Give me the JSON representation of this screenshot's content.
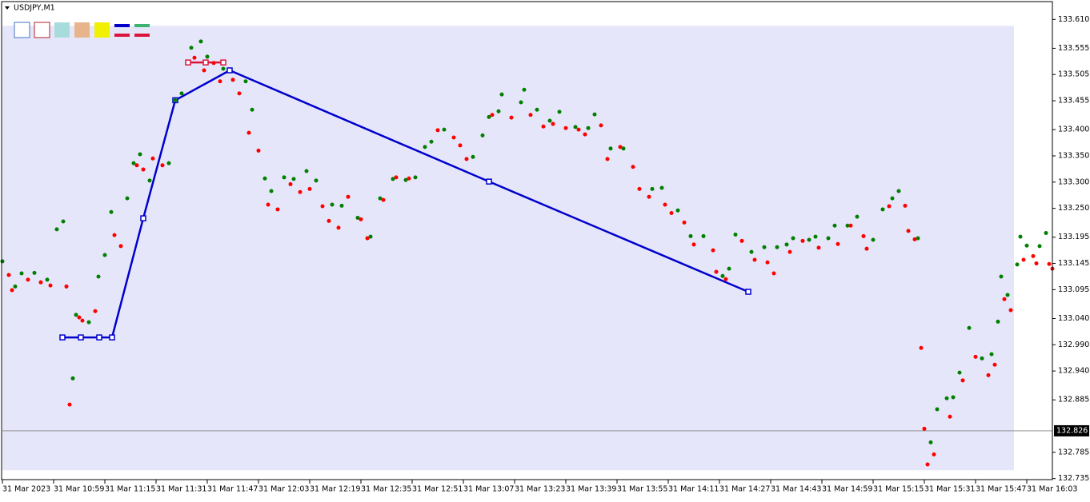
{
  "chart_data": {
    "type": "scatter",
    "title": "USDJPY,M1",
    "xlim": [
      0,
      328
    ],
    "ylim": [
      132.733,
      133.644
    ],
    "xticks": [
      {
        "value": 0,
        "label": "31 Mar 2023"
      },
      {
        "value": 16,
        "label": "31 Mar 10:59"
      },
      {
        "value": 32,
        "label": "31 Mar 11:15"
      },
      {
        "value": 48,
        "label": "31 Mar 11:31"
      },
      {
        "value": 64,
        "label": "31 Mar 11:47"
      },
      {
        "value": 80,
        "label": "31 Mar 12:03"
      },
      {
        "value": 96,
        "label": "31 Mar 12:19"
      },
      {
        "value": 112,
        "label": "31 Mar 12:35"
      },
      {
        "value": 128,
        "label": "31 Mar 12:51"
      },
      {
        "value": 144,
        "label": "31 Mar 13:07"
      },
      {
        "value": 160,
        "label": "31 Mar 13:23"
      },
      {
        "value": 176,
        "label": "31 Mar 13:39"
      },
      {
        "value": 192,
        "label": "31 Mar 13:55"
      },
      {
        "value": 208,
        "label": "31 Mar 14:11"
      },
      {
        "value": 224,
        "label": "31 Mar 14:27"
      },
      {
        "value": 240,
        "label": "31 Mar 14:43"
      },
      {
        "value": 256,
        "label": "31 Mar 14:59"
      },
      {
        "value": 272,
        "label": "31 Mar 15:15"
      },
      {
        "value": 288,
        "label": "31 Mar 15:31"
      },
      {
        "value": 304,
        "label": "31 Mar 15:47"
      },
      {
        "value": 320,
        "label": "31 Mar 16:03"
      }
    ],
    "yticks": [
      {
        "value": 133.61,
        "label": "133.610"
      },
      {
        "value": 133.555,
        "label": "133.555"
      },
      {
        "value": 133.505,
        "label": "133.505"
      },
      {
        "value": 133.455,
        "label": "133.455"
      },
      {
        "value": 133.4,
        "label": "133.400"
      },
      {
        "value": 133.35,
        "label": "133.350"
      },
      {
        "value": 133.3,
        "label": "133.300"
      },
      {
        "value": 133.25,
        "label": "133.250"
      },
      {
        "value": 133.195,
        "label": "133.195"
      },
      {
        "value": 133.145,
        "label": "133.145"
      },
      {
        "value": 133.095,
        "label": "133.095"
      },
      {
        "value": 133.04,
        "label": "133.040"
      },
      {
        "value": 132.99,
        "label": "132.990"
      },
      {
        "value": 132.94,
        "label": "132.940"
      },
      {
        "value": 132.885,
        "label": "132.885"
      },
      {
        "value": 132.785,
        "label": "132.785"
      },
      {
        "value": 132.735,
        "label": "132.735"
      }
    ],
    "current_price": 132.826,
    "zone": {
      "color": "#e6e6fa",
      "xlim": [
        0,
        316
      ],
      "ylim": [
        132.751,
        133.598
      ]
    },
    "series": [
      {
        "color": "#008000",
        "x": [
          0,
          4,
          6,
          10,
          14,
          17,
          19,
          22,
          23,
          27,
          30,
          32,
          34,
          39,
          41,
          43,
          46,
          52,
          54,
          56,
          59,
          62,
          64,
          69,
          76,
          78,
          82,
          84,
          88,
          91,
          95,
          98,
          103,
          106,
          111,
          115,
          118,
          122,
          126,
          129,
          132,
          134,
          138,
          147,
          150,
          152,
          155,
          156,
          162,
          163,
          167,
          171,
          174,
          179,
          183,
          185,
          190,
          194,
          203,
          206,
          211,
          215,
          219,
          225,
          227,
          229,
          234,
          238,
          242,
          245,
          247,
          252,
          254,
          258,
          260,
          264,
          267,
          272,
          275,
          278,
          280,
          286,
          290,
          292,
          295,
          297,
          299,
          302,
          306,
          309,
          311,
          312,
          314,
          317,
          318,
          320,
          324,
          326
        ],
        "values": [
          133.149,
          133.101,
          133.126,
          133.127,
          133.114,
          133.21,
          133.225,
          132.926,
          133.047,
          133.033,
          133.12,
          133.161,
          133.243,
          133.269,
          133.336,
          133.353,
          133.303,
          133.336,
          133.456,
          133.469,
          133.556,
          133.568,
          133.539,
          133.516,
          133.492,
          133.438,
          133.307,
          133.283,
          133.309,
          133.306,
          133.321,
          133.303,
          133.257,
          133.255,
          133.232,
          133.196,
          133.269,
          133.306,
          133.304,
          133.309,
          133.367,
          133.377,
          133.4,
          133.348,
          133.389,
          133.424,
          133.435,
          133.467,
          133.452,
          133.476,
          133.438,
          133.417,
          133.434,
          133.405,
          133.403,
          133.429,
          133.364,
          133.364,
          133.287,
          133.289,
          133.246,
          133.197,
          133.197,
          133.121,
          133.135,
          133.2,
          133.167,
          133.176,
          133.176,
          133.181,
          133.193,
          133.19,
          133.196,
          133.193,
          133.217,
          133.217,
          133.234,
          133.19,
          133.248,
          133.269,
          133.283,
          133.193,
          132.804,
          132.867,
          132.888,
          132.89,
          132.937,
          133.022,
          132.964,
          132.972,
          133.034,
          133.12,
          133.085,
          133.143,
          133.196,
          133.179,
          133.178,
          133.203
        ]
      },
      {
        "color": "#ff0000",
        "x": [
          2,
          3,
          8,
          12,
          15,
          20,
          21,
          24,
          25,
          29,
          35,
          37,
          42,
          44,
          47,
          50,
          60,
          63,
          66,
          68,
          72,
          74,
          77,
          80,
          83,
          86,
          90,
          93,
          96,
          100,
          102,
          105,
          108,
          112,
          114,
          119,
          123,
          127,
          136,
          141,
          143,
          145,
          153,
          159,
          165,
          169,
          172,
          176,
          180,
          182,
          187,
          189,
          193,
          197,
          199,
          202,
          207,
          209,
          213,
          216,
          222,
          223,
          226,
          231,
          235,
          239,
          241,
          246,
          250,
          255,
          261,
          265,
          269,
          270,
          277,
          282,
          283,
          285,
          287,
          288,
          289,
          291,
          296,
          300,
          304,
          308,
          310,
          313,
          315,
          319,
          322,
          323,
          327,
          328
        ],
        "values": [
          133.123,
          133.094,
          133.114,
          133.109,
          133.103,
          133.101,
          132.876,
          133.042,
          133.036,
          133.054,
          133.199,
          133.178,
          133.332,
          133.324,
          133.345,
          133.332,
          133.537,
          133.513,
          133.527,
          133.492,
          133.495,
          133.469,
          133.394,
          133.36,
          133.257,
          133.248,
          133.296,
          133.281,
          133.287,
          133.254,
          133.226,
          133.213,
          133.272,
          133.229,
          133.193,
          133.266,
          133.309,
          133.307,
          133.399,
          133.385,
          133.37,
          133.344,
          133.428,
          133.423,
          133.428,
          133.406,
          133.411,
          133.403,
          133.4,
          133.391,
          133.408,
          133.344,
          133.367,
          133.329,
          133.287,
          133.272,
          133.257,
          133.241,
          133.223,
          133.181,
          133.17,
          133.129,
          133.115,
          133.188,
          133.152,
          133.147,
          133.126,
          133.167,
          133.188,
          133.175,
          133.182,
          133.217,
          133.197,
          133.173,
          133.254,
          133.255,
          133.207,
          133.191,
          132.984,
          132.83,
          132.762,
          132.781,
          132.853,
          132.922,
          132.967,
          132.932,
          132.952,
          133.077,
          133.056,
          133.152,
          133.159,
          133.145,
          133.144,
          133.135
        ]
      }
    ],
    "lines": [
      {
        "color": "#0000cd",
        "x": [
          18.75,
          24.5,
          30.25,
          34.25,
          44,
          54,
          71,
          152,
          233
        ],
        "values": [
          133.004,
          133.004,
          133.004,
          133.004,
          133.231,
          133.456,
          133.513,
          133.301,
          133.091
        ]
      },
      {
        "color": "#dc143c",
        "x": [
          58,
          63.5,
          69
        ],
        "values": [
          133.528,
          133.528,
          133.528
        ]
      }
    ]
  }
}
